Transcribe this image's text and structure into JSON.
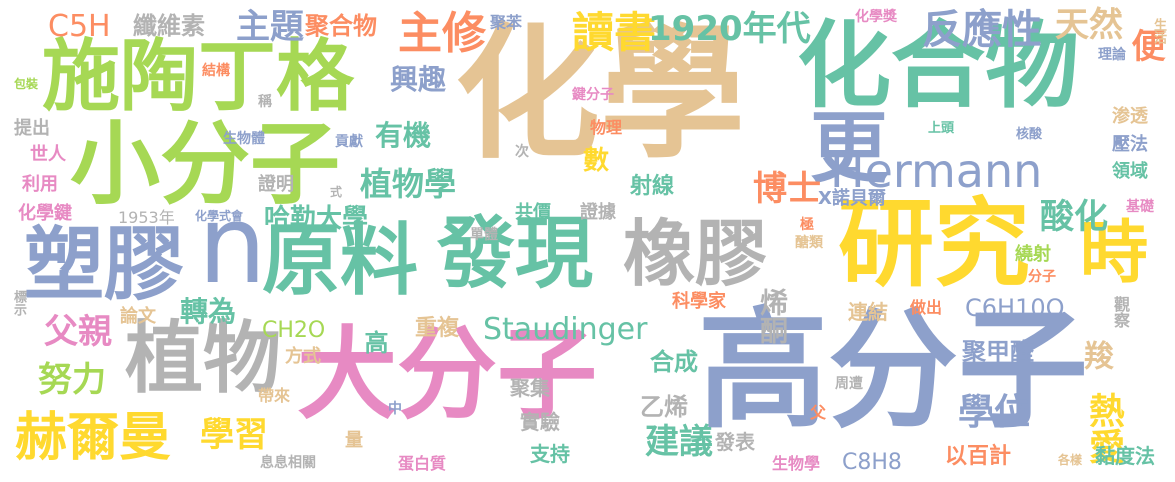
{
  "palette": {
    "tan": "#e5c494",
    "green": "#a6d854",
    "teal": "#66c2a5",
    "blue": "#8da0cb",
    "pink": "#e78ac3",
    "yellow": "#ffd92f",
    "orange": "#fc8d62",
    "grey": "#b3b3b3"
  },
  "words": [
    "化學",
    "高分子",
    "化合物",
    "大分子",
    "研究",
    "發現",
    "原料",
    "橡膠",
    "塑膠",
    "n",
    "植物",
    "小分子",
    "施陶丁格",
    "Hermann",
    "更",
    "時",
    "赫爾曼",
    "Staudinger",
    "學位",
    "主修",
    "反應性",
    "讀書",
    "天然",
    "1920年代",
    "聚合物",
    "主題",
    "纖維素",
    "C5H",
    "興趣",
    "有機",
    "植物學",
    "哈勒大學",
    "酸化",
    "博士",
    "便",
    "轉為",
    "父親",
    "努力",
    "學習",
    "建議",
    "熱愛",
    "烯酮",
    "C6H10O",
    "CH2O",
    "聚甲醛",
    "合成",
    "乙烯",
    "高",
    "羧",
    "以百計",
    "黏度法",
    "C8H8",
    "聚集",
    "實驗",
    "支持",
    "發表",
    "生物學",
    "蛋白質",
    "息息相關",
    "量",
    "中",
    "父",
    "周遭",
    "做出",
    "觀察",
    "連結",
    "重複",
    "論文",
    "方式",
    "科學家",
    "帶來",
    "共價",
    "證據",
    "數",
    "射線",
    "X諾貝爾",
    "繞射",
    "分子",
    "醣類",
    "極",
    "單體",
    "證明",
    "1953年",
    "化學式會",
    "化學鍵",
    "利用",
    "世人",
    "提出",
    "生物體",
    "貢獻",
    "次",
    "式",
    "稱",
    "結構",
    "包裝",
    "化學獎",
    "鍵分子",
    "物理",
    "聚苯",
    "理論",
    "生活",
    "渗透",
    "壓法",
    "領域",
    "基礎",
    "核酸",
    "上頭",
    "標示",
    "各樣"
  ]
}
